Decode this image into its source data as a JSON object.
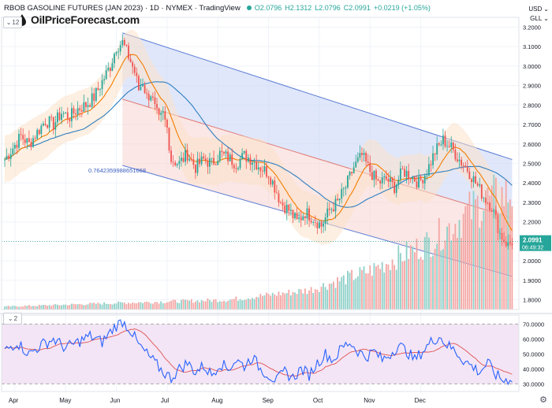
{
  "header": {
    "title": "RBOB GASOLINE FUTURES (JAN 2023) · 1D · NYMEX · TradingView",
    "open": "O2.0796",
    "high": "H2.1312",
    "low": "L2.0796",
    "close": "C2.0991",
    "change": "+0.0219 (+1.05%)",
    "interval_badge": "12",
    "rsi_badge": "2",
    "currency": "USD",
    "unit": "GLL"
  },
  "brand": {
    "name": "OilPriceForecast.com",
    "icon": "oil-drop-icon"
  },
  "price_tag": {
    "value": "2.0991",
    "countdown": "06:49:32"
  },
  "fib_label": "0.7642359988651668",
  "colors": {
    "up": "#26a69a",
    "down": "#ef5350",
    "ema": "#f57c00",
    "sma": "#2f7fc1",
    "channel": "#5b7bd6",
    "rsi": "#2962ff",
    "rsi_ma": "#e05252"
  },
  "chart_data": {
    "type": "candlestick",
    "title": "RBOB GASOLINE FUTURES (JAN 2023)",
    "price_axis": {
      "ticks": [
        "3.2000",
        "3.1000",
        "3.0000",
        "2.9000",
        "2.8000",
        "2.7000",
        "2.6000",
        "2.5000",
        "2.4000",
        "2.3000",
        "2.2000",
        "2.1000",
        "2.0000",
        "1.9000",
        "1.8000"
      ],
      "range": [
        1.75,
        3.25
      ]
    },
    "rsi_axis": {
      "ticks": [
        "70.0000",
        "60.0000",
        "50.0000",
        "40.0000",
        "30.0000"
      ],
      "range": [
        27,
        74
      ],
      "band": [
        30,
        70
      ]
    },
    "time_axis": [
      "Apr",
      "May",
      "Jun",
      "Jul",
      "Aug",
      "Sep",
      "Oct",
      "Nov",
      "Dec"
    ],
    "close_anchors": [
      [
        0,
        2.52
      ],
      [
        4,
        2.58
      ],
      [
        8,
        2.64
      ],
      [
        12,
        2.6
      ],
      [
        16,
        2.66
      ],
      [
        20,
        2.72
      ],
      [
        24,
        2.7
      ],
      [
        28,
        2.76
      ],
      [
        32,
        2.74
      ],
      [
        36,
        2.78
      ],
      [
        40,
        2.8
      ],
      [
        44,
        2.84
      ],
      [
        48,
        2.92
      ],
      [
        52,
        3.0
      ],
      [
        55,
        3.1
      ],
      [
        58,
        3.12
      ],
      [
        61,
        3.05
      ],
      [
        64,
        2.97
      ],
      [
        66,
        2.88
      ],
      [
        68,
        2.92
      ],
      [
        70,
        2.84
      ],
      [
        72,
        2.86
      ],
      [
        74,
        2.78
      ],
      [
        76,
        2.72
      ],
      [
        78,
        2.75
      ],
      [
        80,
        2.68
      ],
      [
        82,
        2.52
      ],
      [
        86,
        2.5
      ],
      [
        90,
        2.55
      ],
      [
        94,
        2.48
      ],
      [
        98,
        2.52
      ],
      [
        102,
        2.5
      ],
      [
        106,
        2.55
      ],
      [
        110,
        2.53
      ],
      [
        114,
        2.5
      ],
      [
        118,
        2.54
      ],
      [
        122,
        2.52
      ],
      [
        126,
        2.48
      ],
      [
        130,
        2.45
      ],
      [
        133,
        2.38
      ],
      [
        136,
        2.3
      ],
      [
        140,
        2.26
      ],
      [
        144,
        2.2
      ],
      [
        148,
        2.25
      ],
      [
        152,
        2.22
      ],
      [
        156,
        2.18
      ],
      [
        160,
        2.26
      ],
      [
        164,
        2.3
      ],
      [
        168,
        2.38
      ],
      [
        172,
        2.48
      ],
      [
        176,
        2.54
      ],
      [
        180,
        2.46
      ],
      [
        184,
        2.4
      ],
      [
        188,
        2.42
      ],
      [
        192,
        2.38
      ],
      [
        196,
        2.46
      ],
      [
        200,
        2.44
      ],
      [
        204,
        2.4
      ],
      [
        208,
        2.46
      ],
      [
        212,
        2.56
      ],
      [
        216,
        2.62
      ],
      [
        220,
        2.58
      ],
      [
        224,
        2.52
      ],
      [
        228,
        2.47
      ],
      [
        232,
        2.4
      ],
      [
        236,
        2.33
      ],
      [
        240,
        2.28
      ],
      [
        244,
        2.14
      ],
      [
        248,
        2.08
      ],
      [
        250,
        2.1
      ]
    ],
    "volume_anchors": [
      [
        0,
        0.015
      ],
      [
        60,
        0.035
      ],
      [
        110,
        0.05
      ],
      [
        150,
        0.1
      ],
      [
        180,
        0.2
      ],
      [
        210,
        0.35
      ],
      [
        235,
        0.55
      ],
      [
        250,
        0.6
      ]
    ],
    "rsi_anchors": [
      [
        0,
        52
      ],
      [
        6,
        58
      ],
      [
        12,
        50
      ],
      [
        18,
        56
      ],
      [
        24,
        60
      ],
      [
        30,
        54
      ],
      [
        36,
        58
      ],
      [
        42,
        62
      ],
      [
        48,
        58
      ],
      [
        54,
        68
      ],
      [
        58,
        72
      ],
      [
        62,
        66
      ],
      [
        66,
        56
      ],
      [
        70,
        50
      ],
      [
        74,
        44
      ],
      [
        78,
        38
      ],
      [
        82,
        34
      ],
      [
        86,
        40
      ],
      [
        90,
        44
      ],
      [
        94,
        38
      ],
      [
        98,
        42
      ],
      [
        102,
        36
      ],
      [
        106,
        44
      ],
      [
        110,
        40
      ],
      [
        114,
        46
      ],
      [
        118,
        42
      ],
      [
        122,
        48
      ],
      [
        126,
        40
      ],
      [
        130,
        36
      ],
      [
        134,
        32
      ],
      [
        138,
        38
      ],
      [
        142,
        34
      ],
      [
        146,
        40
      ],
      [
        150,
        36
      ],
      [
        154,
        44
      ],
      [
        158,
        50
      ],
      [
        162,
        46
      ],
      [
        166,
        54
      ],
      [
        170,
        58
      ],
      [
        174,
        52
      ],
      [
        178,
        48
      ],
      [
        182,
        52
      ],
      [
        186,
        46
      ],
      [
        190,
        50
      ],
      [
        194,
        56
      ],
      [
        198,
        52
      ],
      [
        202,
        46
      ],
      [
        206,
        52
      ],
      [
        210,
        58
      ],
      [
        214,
        62
      ],
      [
        218,
        56
      ],
      [
        222,
        52
      ],
      [
        226,
        46
      ],
      [
        230,
        42
      ],
      [
        234,
        38
      ],
      [
        238,
        44
      ],
      [
        242,
        36
      ],
      [
        246,
        32
      ],
      [
        250,
        34
      ]
    ]
  }
}
